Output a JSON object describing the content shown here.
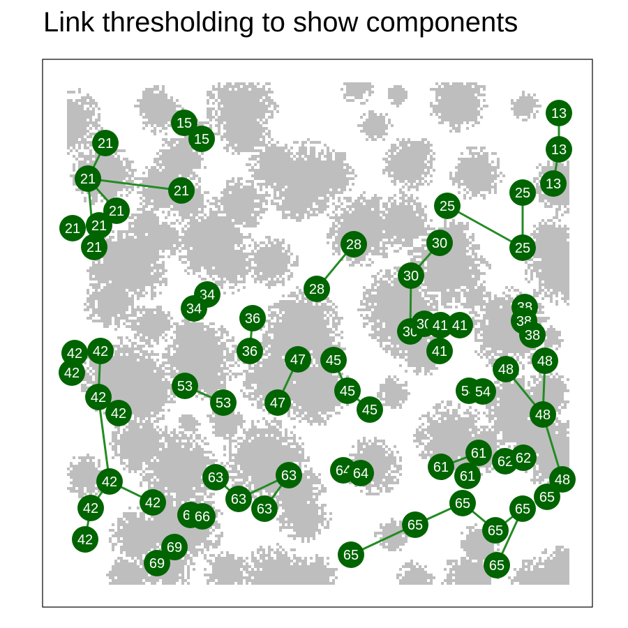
{
  "title": "Link thresholding to show components",
  "colors": {
    "node": "#006400",
    "edge": "#228b22",
    "habitat": "#bebebe",
    "label": "#ffffff",
    "frame": "#000000"
  },
  "nodes": [
    {
      "id": "n13a",
      "label": "13"
    },
    {
      "id": "n13b",
      "label": "13"
    },
    {
      "id": "n13c",
      "label": "13"
    },
    {
      "id": "n15a",
      "label": "15"
    },
    {
      "id": "n15b",
      "label": "15"
    },
    {
      "id": "n21a",
      "label": "21"
    },
    {
      "id": "n21b",
      "label": "21"
    },
    {
      "id": "n21c",
      "label": "21"
    },
    {
      "id": "n21d",
      "label": "21"
    },
    {
      "id": "n21e",
      "label": "21"
    },
    {
      "id": "n21f",
      "label": "21"
    },
    {
      "id": "n21g",
      "label": "21"
    },
    {
      "id": "n25a",
      "label": "25"
    },
    {
      "id": "n25b",
      "label": "25"
    },
    {
      "id": "n25c",
      "label": "25"
    },
    {
      "id": "n28a",
      "label": "28"
    },
    {
      "id": "n28b",
      "label": "28"
    },
    {
      "id": "n30a",
      "label": "30"
    },
    {
      "id": "n30b",
      "label": "30"
    },
    {
      "id": "n30c",
      "label": "30"
    },
    {
      "id": "n30d",
      "label": "30"
    },
    {
      "id": "n41a",
      "label": "41"
    },
    {
      "id": "n41b",
      "label": "41"
    },
    {
      "id": "n41c",
      "label": "41"
    },
    {
      "id": "n34a",
      "label": "34"
    },
    {
      "id": "n34b",
      "label": "34"
    },
    {
      "id": "n36a",
      "label": "36"
    },
    {
      "id": "n36b",
      "label": "36"
    },
    {
      "id": "n38a",
      "label": "38"
    },
    {
      "id": "n38b",
      "label": "38"
    },
    {
      "id": "n38c",
      "label": "38"
    },
    {
      "id": "n42a",
      "label": "42"
    },
    {
      "id": "n42b",
      "label": "42"
    },
    {
      "id": "n42c",
      "label": "42"
    },
    {
      "id": "n42d",
      "label": "42"
    },
    {
      "id": "n42e",
      "label": "42"
    },
    {
      "id": "n42f",
      "label": "42"
    },
    {
      "id": "n42g",
      "label": "42"
    },
    {
      "id": "n42h",
      "label": "42"
    },
    {
      "id": "n42i",
      "label": "42"
    },
    {
      "id": "n45a",
      "label": "45"
    },
    {
      "id": "n45b",
      "label": "45"
    },
    {
      "id": "n45c",
      "label": "45"
    },
    {
      "id": "n47a",
      "label": "47"
    },
    {
      "id": "n47b",
      "label": "47"
    },
    {
      "id": "n48a",
      "label": "48"
    },
    {
      "id": "n48b",
      "label": "48"
    },
    {
      "id": "n48c",
      "label": "48"
    },
    {
      "id": "n48d",
      "label": "48"
    },
    {
      "id": "n53a",
      "label": "53"
    },
    {
      "id": "n53b",
      "label": "53"
    },
    {
      "id": "n54a",
      "label": "54"
    },
    {
      "id": "n54b",
      "label": "54"
    },
    {
      "id": "n61a",
      "label": "61"
    },
    {
      "id": "n61b",
      "label": "61"
    },
    {
      "id": "n61c",
      "label": "61"
    },
    {
      "id": "n62a",
      "label": "62"
    },
    {
      "id": "n62b",
      "label": "62"
    },
    {
      "id": "n63a",
      "label": "63"
    },
    {
      "id": "n63b",
      "label": "63"
    },
    {
      "id": "n63c",
      "label": "63"
    },
    {
      "id": "n63d",
      "label": "63"
    },
    {
      "id": "n64a",
      "label": "64"
    },
    {
      "id": "n64b",
      "label": "64"
    },
    {
      "id": "n65a",
      "label": "65"
    },
    {
      "id": "n65b",
      "label": "65"
    },
    {
      "id": "n65c",
      "label": "65"
    },
    {
      "id": "n65d",
      "label": "65"
    },
    {
      "id": "n65e",
      "label": "65"
    },
    {
      "id": "n65f",
      "label": "65"
    },
    {
      "id": "n65g",
      "label": "65"
    },
    {
      "id": "n66a",
      "label": "66"
    },
    {
      "id": "n66b",
      "label": "66"
    },
    {
      "id": "n69a",
      "label": "69"
    },
    {
      "id": "n69b",
      "label": "69"
    }
  ],
  "edges": [
    [
      "n13a",
      "n13b"
    ],
    [
      "n13b",
      "n13c"
    ],
    [
      "n21a",
      "n21b"
    ],
    [
      "n21b",
      "n21c"
    ],
    [
      "n21b",
      "n21d"
    ],
    [
      "n21b",
      "n21g"
    ],
    [
      "n21d",
      "n21f"
    ],
    [
      "n25a",
      "n25c"
    ],
    [
      "n25b",
      "n25c"
    ],
    [
      "n28a",
      "n28b"
    ],
    [
      "n30a",
      "n30b"
    ],
    [
      "n30b",
      "n30c"
    ],
    [
      "n36a",
      "n36b"
    ],
    [
      "n42b",
      "n42d"
    ],
    [
      "n42d",
      "n42f"
    ],
    [
      "n42f",
      "n42g"
    ],
    [
      "n42f",
      "n42h"
    ],
    [
      "n42h",
      "n42i"
    ],
    [
      "n45a",
      "n45b"
    ],
    [
      "n45b",
      "n45c"
    ],
    [
      "n47a",
      "n47b"
    ],
    [
      "n48a",
      "n48c"
    ],
    [
      "n48b",
      "n48c"
    ],
    [
      "n48c",
      "n48d"
    ],
    [
      "n53a",
      "n53b"
    ],
    [
      "n61a",
      "n61b"
    ],
    [
      "n61b",
      "n61c"
    ],
    [
      "n63a",
      "n63b"
    ],
    [
      "n63b",
      "n63d"
    ],
    [
      "n63d",
      "n63c"
    ],
    [
      "n65a",
      "n65b"
    ],
    [
      "n65b",
      "n65c"
    ],
    [
      "n65c",
      "n65d"
    ],
    [
      "n65d",
      "n65e"
    ],
    [
      "n65e",
      "n65f"
    ],
    [
      "n69a",
      "n69b"
    ]
  ]
}
